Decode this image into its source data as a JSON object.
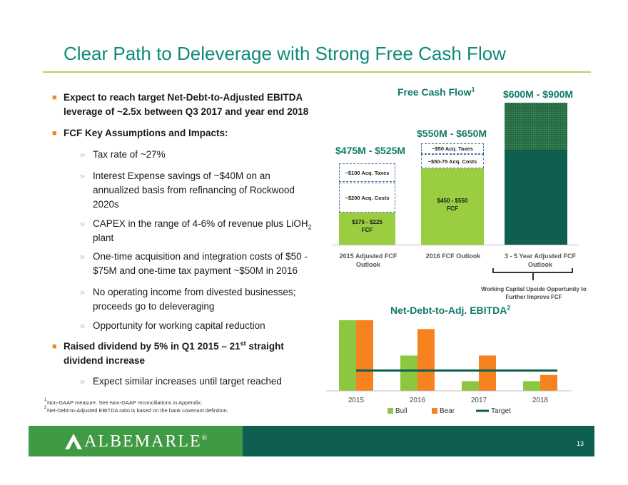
{
  "title": "Clear Path to Deleverage with Strong Free Cash Flow",
  "bullets": [
    "Expect to reach target Net-Debt-to-Adjusted EBITDA leverage of ~2.5x between Q3 2017 and year end 2018",
    "FCF Key Assumptions and Impacts:"
  ],
  "subs": {
    "tax": "Tax rate of ~27%",
    "interest_1": "Interest Expense savings of ~$40M  on an",
    "interest_2": "annualized basis from refinancing of Rockwood",
    "interest_3": "2020s",
    "capex_1": "CAPEX in the range of 4-6% of revenue plus LiOH",
    "capex_sub": "2",
    "capex_2": "plant",
    "onetime_1": "One-time acquisition and integration costs of $50 -",
    "onetime_2": "$75M and one-time tax payment ~$50M in 2016",
    "divested_1": "No operating income from divested businesses;",
    "divested_2": "proceeds go to deleveraging",
    "working": "Opportunity for working capital reduction",
    "similar": "Expect similar increases until target reached"
  },
  "dividend": {
    "line1": "Raised dividend by 5% in Q1 2015 – 21",
    "sup": "st",
    "line1_end": " straight",
    "line2": "dividend increase"
  },
  "footnotes": [
    {
      "mark": "1",
      "text": "Non-GAAP measure. See Non-GAAP reconciliations in Appendix."
    },
    {
      "mark": "2",
      "text": "Net-Debt-to-Adjusted EBITDA ratio is based on the bank covenant definition."
    }
  ],
  "fcf_chart": {
    "title": "Free Cash Flow",
    "title_sup": "1",
    "ranges": [
      "$475M - $525M",
      "$550M - $650M",
      "$600M - $900M"
    ],
    "boxes": {
      "acq2015_a": "~$100 Acq. Taxes",
      "acq2015_b": "~$200 Acq. Costs",
      "acq2016_a": "~$50 Acq. Taxes",
      "acq2016_b": "~$50-75 Acq. Costs"
    },
    "bar_labels": {
      "b2015_1": "$175 - $225",
      "b2015_2": "FCF",
      "b2016_1": "$450 - $550",
      "b2016_2": "FCF"
    },
    "categories": {
      "c1a": "2015 Adjusted FCF",
      "c1b": "Outlook",
      "c2": "2016 FCF Outlook",
      "c3a": "3 - 5 Year Adjusted FCF",
      "c3b": "Outlook"
    },
    "note_1": "Working Capital Upside Opportunity to",
    "note_2": "Further Improve FCF",
    "colors": {
      "fcf": "#9acd3f",
      "dark": "#0e5f52",
      "pattern": "#2f7a4a"
    }
  },
  "chart_data": {
    "type": "bar",
    "title": "Net-Debt-to-Adj. EBITDA",
    "title_sup": "2",
    "categories": [
      "2015",
      "2016",
      "2017",
      "2018"
    ],
    "series": [
      {
        "name": "Bull",
        "values": [
          4.0,
          2.0,
          0.55,
          0.55
        ],
        "color": "#8dc63f"
      },
      {
        "name": "Bear",
        "values": [
          4.0,
          3.5,
          2.0,
          0.9
        ],
        "color": "#f5821f"
      }
    ],
    "target": {
      "name": "Target",
      "value": 1.15,
      "color": "#0e5f52"
    },
    "ylim": [
      0,
      4.2
    ]
  },
  "footer": {
    "logo": "ALBEMARLE",
    "reg": "®",
    "page": "13",
    "colors": {
      "green": "#3f9a43",
      "teal": "#0e5f52"
    }
  }
}
